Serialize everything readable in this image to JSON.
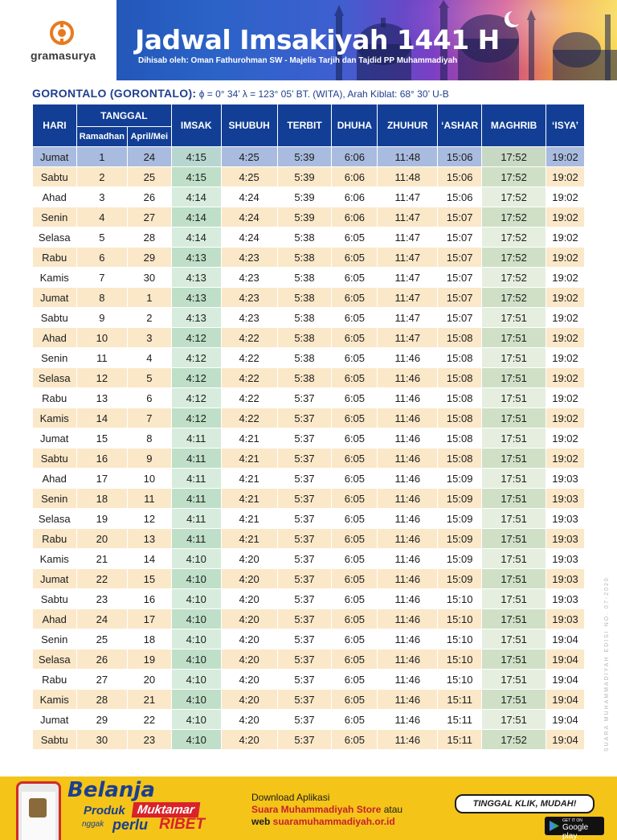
{
  "header": {
    "logo_text": "gramasurya",
    "title": "Jadwal Imsakiyah 1441 H",
    "subtitle": "Dihisab oleh: Oman Fathurohman SW - Majelis Tarjih dan Tajdid PP Muhammadiyah"
  },
  "location": {
    "name": "GORONTALO (GORONTALO):",
    "coords": " ϕ = 0° 34’  λ = 123° 05’  BT. (WITA), Arah Kiblat: 68° 30’ U-B"
  },
  "table": {
    "headers": {
      "hari": "HARI",
      "tanggal": "TANGGAL",
      "ramadhan": "Ramadhan",
      "aprilmei": "April/Mei",
      "imsak": "IMSAK",
      "shubuh": "SHUBUH",
      "terbit": "TERBIT",
      "dhuha": "DHUHA",
      "zhuhur": "ZHUHUR",
      "ashar": "‘ASHAR",
      "maghrib": "MAGHRIB",
      "isya": "‘ISYA’"
    },
    "rows": [
      [
        "Jumat",
        "1",
        "24",
        "4:15",
        "4:25",
        "5:39",
        "6:06",
        "11:48",
        "15:06",
        "17:52",
        "19:02"
      ],
      [
        "Sabtu",
        "2",
        "25",
        "4:15",
        "4:25",
        "5:39",
        "6:06",
        "11:48",
        "15:06",
        "17:52",
        "19:02"
      ],
      [
        "Ahad",
        "3",
        "26",
        "4:14",
        "4:24",
        "5:39",
        "6:06",
        "11:47",
        "15:06",
        "17:52",
        "19:02"
      ],
      [
        "Senin",
        "4",
        "27",
        "4:14",
        "4:24",
        "5:39",
        "6:06",
        "11:47",
        "15:07",
        "17:52",
        "19:02"
      ],
      [
        "Selasa",
        "5",
        "28",
        "4:14",
        "4:24",
        "5:38",
        "6:05",
        "11:47",
        "15:07",
        "17:52",
        "19:02"
      ],
      [
        "Rabu",
        "6",
        "29",
        "4:13",
        "4:23",
        "5:38",
        "6:05",
        "11:47",
        "15:07",
        "17:52",
        "19:02"
      ],
      [
        "Kamis",
        "7",
        "30",
        "4:13",
        "4:23",
        "5:38",
        "6:05",
        "11:47",
        "15:07",
        "17:52",
        "19:02"
      ],
      [
        "Jumat",
        "8",
        "1",
        "4:13",
        "4:23",
        "5:38",
        "6:05",
        "11:47",
        "15:07",
        "17:52",
        "19:02"
      ],
      [
        "Sabtu",
        "9",
        "2",
        "4:13",
        "4:23",
        "5:38",
        "6:05",
        "11:47",
        "15:07",
        "17:51",
        "19:02"
      ],
      [
        "Ahad",
        "10",
        "3",
        "4:12",
        "4:22",
        "5:38",
        "6:05",
        "11:47",
        "15:08",
        "17:51",
        "19:02"
      ],
      [
        "Senin",
        "11",
        "4",
        "4:12",
        "4:22",
        "5:38",
        "6:05",
        "11:46",
        "15:08",
        "17:51",
        "19:02"
      ],
      [
        "Selasa",
        "12",
        "5",
        "4:12",
        "4:22",
        "5:38",
        "6:05",
        "11:46",
        "15:08",
        "17:51",
        "19:02"
      ],
      [
        "Rabu",
        "13",
        "6",
        "4:12",
        "4:22",
        "5:37",
        "6:05",
        "11:46",
        "15:08",
        "17:51",
        "19:02"
      ],
      [
        "Kamis",
        "14",
        "7",
        "4:12",
        "4:22",
        "5:37",
        "6:05",
        "11:46",
        "15:08",
        "17:51",
        "19:02"
      ],
      [
        "Jumat",
        "15",
        "8",
        "4:11",
        "4:21",
        "5:37",
        "6:05",
        "11:46",
        "15:08",
        "17:51",
        "19:02"
      ],
      [
        "Sabtu",
        "16",
        "9",
        "4:11",
        "4:21",
        "5:37",
        "6:05",
        "11:46",
        "15:08",
        "17:51",
        "19:02"
      ],
      [
        "Ahad",
        "17",
        "10",
        "4:11",
        "4:21",
        "5:37",
        "6:05",
        "11:46",
        "15:09",
        "17:51",
        "19:03"
      ],
      [
        "Senin",
        "18",
        "11",
        "4:11",
        "4:21",
        "5:37",
        "6:05",
        "11:46",
        "15:09",
        "17:51",
        "19:03"
      ],
      [
        "Selasa",
        "19",
        "12",
        "4:11",
        "4:21",
        "5:37",
        "6:05",
        "11:46",
        "15:09",
        "17:51",
        "19:03"
      ],
      [
        "Rabu",
        "20",
        "13",
        "4:11",
        "4:21",
        "5:37",
        "6:05",
        "11:46",
        "15:09",
        "17:51",
        "19:03"
      ],
      [
        "Kamis",
        "21",
        "14",
        "4:10",
        "4:20",
        "5:37",
        "6:05",
        "11:46",
        "15:09",
        "17:51",
        "19:03"
      ],
      [
        "Jumat",
        "22",
        "15",
        "4:10",
        "4:20",
        "5:37",
        "6:05",
        "11:46",
        "15:09",
        "17:51",
        "19:03"
      ],
      [
        "Sabtu",
        "23",
        "16",
        "4:10",
        "4:20",
        "5:37",
        "6:05",
        "11:46",
        "15:10",
        "17:51",
        "19:03"
      ],
      [
        "Ahad",
        "24",
        "17",
        "4:10",
        "4:20",
        "5:37",
        "6:05",
        "11:46",
        "15:10",
        "17:51",
        "19:03"
      ],
      [
        "Senin",
        "25",
        "18",
        "4:10",
        "4:20",
        "5:37",
        "6:05",
        "11:46",
        "15:10",
        "17:51",
        "19:04"
      ],
      [
        "Selasa",
        "26",
        "19",
        "4:10",
        "4:20",
        "5:37",
        "6:05",
        "11:46",
        "15:10",
        "17:51",
        "19:04"
      ],
      [
        "Rabu",
        "27",
        "20",
        "4:10",
        "4:20",
        "5:37",
        "6:05",
        "11:46",
        "15:10",
        "17:51",
        "19:04"
      ],
      [
        "Kamis",
        "28",
        "21",
        "4:10",
        "4:20",
        "5:37",
        "6:05",
        "11:46",
        "15:11",
        "17:51",
        "19:04"
      ],
      [
        "Jumat",
        "29",
        "22",
        "4:10",
        "4:20",
        "5:37",
        "6:05",
        "11:46",
        "15:11",
        "17:51",
        "19:04"
      ],
      [
        "Sabtu",
        "30",
        "23",
        "4:10",
        "4:20",
        "5:37",
        "6:05",
        "11:46",
        "15:11",
        "17:52",
        "19:04"
      ]
    ]
  },
  "side_text": "SUARA MUHAMMADIYAH EDISI NO. 07-2020",
  "banner": {
    "belanja": "Belanja",
    "produk": "Produk",
    "muktamar": "Muktamar",
    "nggak": "nggak",
    "perlu": "perlu",
    "ribet": "RIBET",
    "download_line": "Download Aplikasi",
    "store_name": "Suara Muhammadiyah Store",
    "atau": " atau",
    "web_label": "web ",
    "web_url": "suaramuhammadiyah.or.id",
    "tinggal": "TINGGAL KLIK, MUDAH!",
    "gplay_small": "GET IT ON",
    "gplay_big": "Google play"
  },
  "colors": {
    "header_blue": "#123f95",
    "row_alt": "#fbe8c8",
    "imsak_col": "#d7ecdd",
    "banner_yellow": "#f4c419",
    "accent_red": "#d9222a"
  }
}
